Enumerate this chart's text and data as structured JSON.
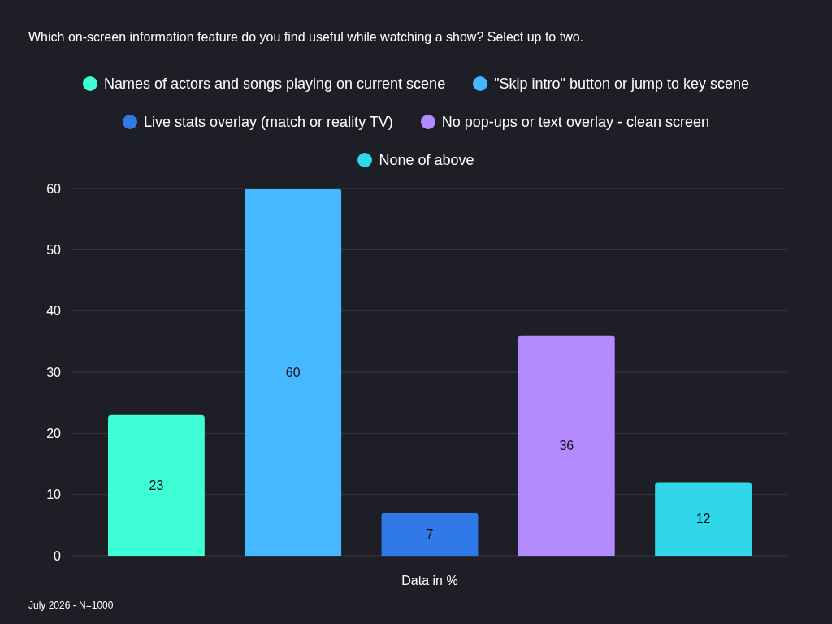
{
  "chart_data": {
    "type": "bar",
    "title": "Which on-screen information feature do you find useful while watching a show? Select up to two.",
    "xlabel": "Data in %",
    "categories": [
      null
    ],
    "series": [
      {
        "name": "Names of actors and songs playing on current scene",
        "color": "#3effd6",
        "values": [
          23
        ]
      },
      {
        "name": "\"Skip intro\" button or jump to key scene",
        "color": "#45b8ff",
        "values": [
          60
        ]
      },
      {
        "name": "Live stats overlay (match or reality TV)",
        "color": "#2f79e8",
        "values": [
          7
        ]
      },
      {
        "name": "No pop-ups or text overlay - clean screen",
        "color": "#b48bff",
        "values": [
          36
        ]
      },
      {
        "name": "None of above",
        "color": "#30d6ea",
        "values": [
          12
        ]
      }
    ],
    "ylim": [
      0,
      60
    ],
    "yticks": [
      0,
      10,
      20,
      30,
      40,
      50,
      60
    ],
    "grid": "y",
    "legend": "top",
    "data_labels": true,
    "annotations": [
      "July 2026 - N=1000"
    ]
  }
}
